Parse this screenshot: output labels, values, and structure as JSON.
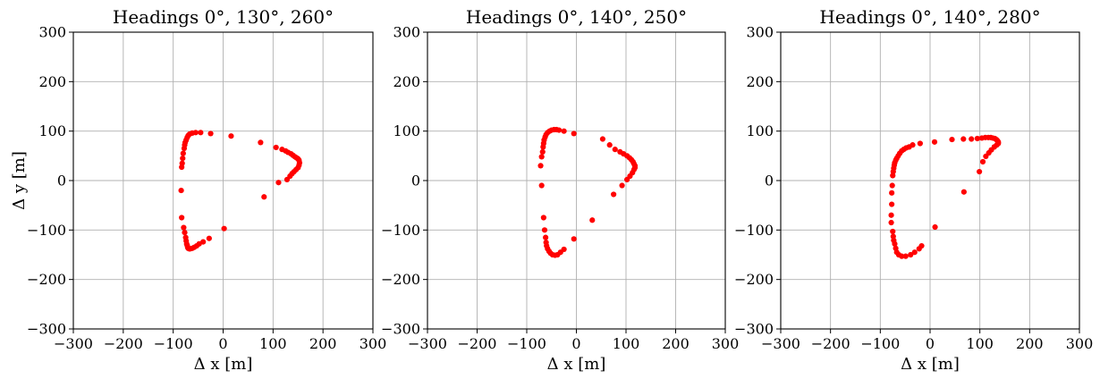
{
  "chart_data": [
    {
      "type": "scatter",
      "title": "Headings 0°, 130°, 260°",
      "xlabel": "Δ x [m]",
      "ylabel": "Δ y [m]",
      "xlim": [
        -300,
        300
      ],
      "ylim": [
        -300,
        300
      ],
      "xticks": [
        "−300",
        "−200",
        "−100",
        "0",
        "100",
        "200",
        "300"
      ],
      "yticks": [
        "−300",
        "−200",
        "−100",
        "0",
        "100",
        "200",
        "300"
      ],
      "grid": true,
      "marker_color": "#ff0000",
      "series": [
        {
          "x": [
            -25,
            -45,
            -55,
            -62,
            -67,
            -70,
            -72,
            -74,
            -76,
            -77,
            -78,
            -80,
            -81,
            -82,
            -83,
            -84,
            -83,
            -79,
            -77,
            -75,
            -74,
            -73,
            -72,
            -71,
            -70,
            -68,
            -66,
            -62,
            -58,
            -53,
            -48,
            -40,
            -28,
            2,
            16,
            75,
            106,
            118,
            125,
            130,
            136,
            140,
            144,
            147,
            150,
            152,
            153,
            152,
            150,
            146,
            142,
            138,
            134,
            128,
            111,
            82
          ],
          "y": [
            95,
            97,
            97,
            96,
            94,
            91,
            87,
            82,
            77,
            72,
            65,
            55,
            45,
            35,
            27,
            -20,
            -75,
            -95,
            -105,
            -115,
            -122,
            -128,
            -131,
            -135,
            -137,
            -138,
            -138,
            -137,
            -135,
            -132,
            -128,
            -124,
            -117,
            -97,
            90,
            77,
            67,
            63,
            60,
            57,
            54,
            51,
            48,
            46,
            44,
            41,
            36,
            31,
            26,
            22,
            18,
            14,
            9,
            2,
            -4,
            -33
          ]
        }
      ]
    },
    {
      "type": "scatter",
      "title": "Headings 0°, 140°, 250°",
      "xlabel": "Δ x [m]",
      "ylabel": "",
      "xlim": [
        -300,
        300
      ],
      "ylim": [
        -300,
        300
      ],
      "xticks": [
        "−300",
        "−200",
        "−100",
        "0",
        "100",
        "200",
        "300"
      ],
      "yticks": [
        "−300",
        "−200",
        "−100",
        "0",
        "100",
        "200",
        "300"
      ],
      "grid": true,
      "marker_color": "#ff0000",
      "series": [
        {
          "x": [
            -5,
            -25,
            -35,
            -40,
            -45,
            -50,
            -54,
            -58,
            -61,
            -63,
            -65,
            -66,
            -67,
            -68,
            -70,
            -72,
            -70,
            -66,
            -64,
            -62,
            -61,
            -60,
            -58,
            -55,
            -52,
            -48,
            -43,
            -38,
            -32,
            -25,
            -5,
            32,
            53,
            67,
            78,
            88,
            95,
            102,
            107,
            111,
            114,
            116,
            118,
            118,
            116,
            113,
            108,
            102,
            92,
            75
          ],
          "y": [
            95,
            100,
            102,
            103,
            103,
            102,
            100,
            97,
            93,
            88,
            82,
            75,
            68,
            58,
            48,
            30,
            -10,
            -75,
            -100,
            -115,
            -125,
            -132,
            -138,
            -143,
            -147,
            -150,
            -151,
            -150,
            -145,
            -139,
            -118,
            -80,
            84,
            72,
            63,
            58,
            54,
            50,
            46,
            42,
            38,
            34,
            30,
            26,
            22,
            16,
            9,
            2,
            -10,
            -28
          ]
        }
      ]
    },
    {
      "type": "scatter",
      "title": "Headings 0°, 140°, 280°",
      "xlabel": "Δ x [m]",
      "ylabel": "",
      "xlim": [
        -300,
        300
      ],
      "ylim": [
        -300,
        300
      ],
      "xticks": [
        "−300",
        "−200",
        "−100",
        "0",
        "100",
        "200",
        "300"
      ],
      "yticks": [
        "−300",
        "−200",
        "−100",
        "0",
        "100",
        "200",
        "300"
      ],
      "grid": true,
      "marker_color": "#ff0000",
      "series": [
        {
          "x": [
            -20,
            -35,
            -42,
            -48,
            -53,
            -57,
            -61,
            -64,
            -67,
            -69,
            -71,
            -72,
            -73,
            -74,
            -75,
            -76,
            -77,
            -77,
            -78,
            -78,
            -75,
            -74,
            -73,
            -71,
            -69,
            -67,
            -63,
            -57,
            -49,
            -39,
            -31,
            -22,
            -17,
            10,
            9,
            44,
            67,
            83,
            95,
            104,
            111,
            117,
            122,
            126,
            130,
            133,
            135,
            137,
            137,
            134,
            129,
            123,
            118,
            112,
            106,
            99,
            68
          ],
          "y": [
            75,
            72,
            68,
            66,
            63,
            60,
            55,
            50,
            45,
            41,
            36,
            31,
            25,
            18,
            10,
            -10,
            -25,
            -48,
            -70,
            -85,
            -103,
            -113,
            -121,
            -128,
            -137,
            -145,
            -150,
            -153,
            -153,
            -150,
            -145,
            -138,
            -132,
            -94,
            78,
            83,
            84,
            84,
            85,
            86,
            87,
            87,
            87,
            86,
            85,
            83,
            81,
            78,
            75,
            72,
            68,
            62,
            56,
            49,
            38,
            18,
            -23
          ]
        }
      ]
    }
  ]
}
